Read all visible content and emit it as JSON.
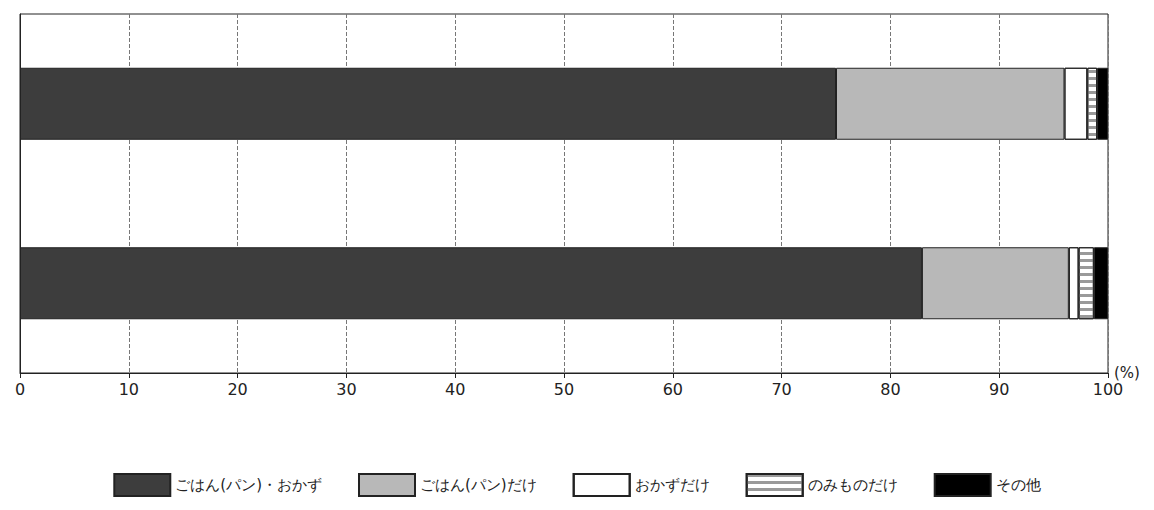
{
  "chart_data": {
    "type": "bar",
    "orientation": "horizontal",
    "stacked": true,
    "categories": [
      null,
      null
    ],
    "xlabel": "(%)",
    "xlim": [
      0,
      100
    ],
    "xticks": [
      0,
      10,
      20,
      30,
      40,
      50,
      60,
      70,
      80,
      90,
      100
    ],
    "grid": true,
    "legend": "bottom",
    "tick_labels": "x",
    "data_labels": false,
    "series": [
      {
        "name": "ごはん(パン)・おかず",
        "color": "#3d3d3d",
        "values": [
          75.0,
          82.9
        ]
      },
      {
        "name": "ごはん(パン)だけ",
        "color": "#b8b8b8",
        "values": [
          21.0,
          13.5
        ]
      },
      {
        "name": "おかずだけ",
        "color": "#ffffff",
        "values": [
          2.1,
          0.9
        ]
      },
      {
        "name": "のみものだけ",
        "color": "#ffffff",
        "values": [
          0.9,
          1.4
        ]
      },
      {
        "name": "その他",
        "color": "#000000",
        "values": [
          1.0,
          1.3
        ]
      }
    ]
  }
}
